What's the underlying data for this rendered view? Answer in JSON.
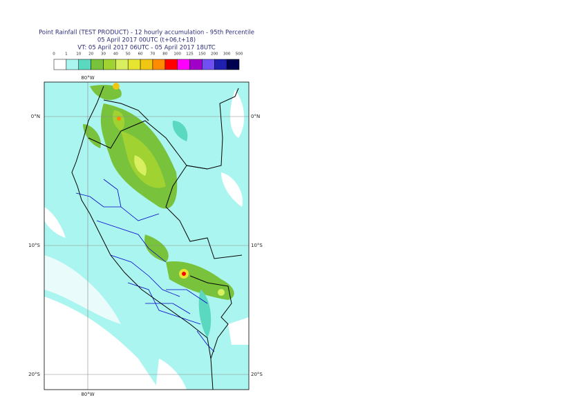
{
  "header": {
    "title": "Point Rainfall (TEST PRODUCT) - 12 hourly accumulation - 95th Percentile",
    "base_time": "05 April 2017 00UTC (t+06,t+18)",
    "valid_time": "VT: 05 April 2017 06UTC - 05 April 2017 18UTC"
  },
  "legend": {
    "labels": [
      "0",
      "1",
      "10",
      "20",
      "30",
      "40",
      "50",
      "60",
      "70",
      "80",
      "100",
      "125",
      "150",
      "200",
      "300",
      "500"
    ],
    "colors": [
      "#ffffff",
      "#aaf5f0",
      "#5ad8c0",
      "#78c23c",
      "#a0d232",
      "#d8f060",
      "#e6e632",
      "#f0c814",
      "#ff8c00",
      "#ff0000",
      "#ff00ff",
      "#a000c8",
      "#7050f0",
      "#2020b0",
      "#000050"
    ]
  },
  "map": {
    "top_labels": [
      "80°W"
    ],
    "bottom_labels": [
      "80°W"
    ],
    "left_labels": [
      "0°N",
      "10°S",
      "20°S"
    ],
    "right_labels": [
      "0°N",
      "10°S",
      "20°S"
    ]
  }
}
